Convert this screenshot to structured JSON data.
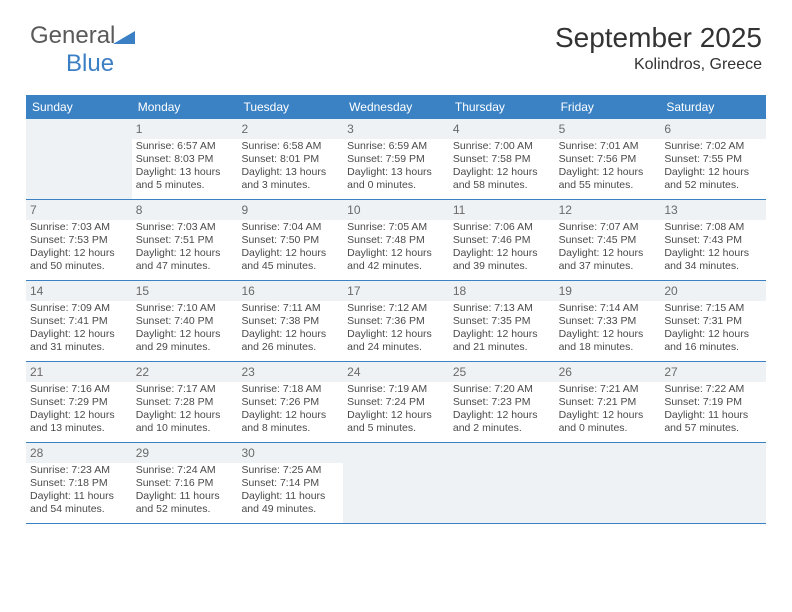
{
  "brand": {
    "part1": "General",
    "part2": "Blue"
  },
  "title": "September 2025",
  "location": "Kolindros, Greece",
  "colors": {
    "header_bg": "#3b82c4",
    "header_text": "#ffffff",
    "shaded_bg": "#eef2f5",
    "border": "#3b82c4",
    "text": "#4a4a4a"
  },
  "weekdays": [
    "Sunday",
    "Monday",
    "Tuesday",
    "Wednesday",
    "Thursday",
    "Friday",
    "Saturday"
  ],
  "weeks": [
    [
      {
        "shaded": true
      },
      {
        "day": "1",
        "sunrise": "Sunrise: 6:57 AM",
        "sunset": "Sunset: 8:03 PM",
        "daylight": "Daylight: 13 hours and 5 minutes."
      },
      {
        "day": "2",
        "sunrise": "Sunrise: 6:58 AM",
        "sunset": "Sunset: 8:01 PM",
        "daylight": "Daylight: 13 hours and 3 minutes."
      },
      {
        "day": "3",
        "sunrise": "Sunrise: 6:59 AM",
        "sunset": "Sunset: 7:59 PM",
        "daylight": "Daylight: 13 hours and 0 minutes."
      },
      {
        "day": "4",
        "sunrise": "Sunrise: 7:00 AM",
        "sunset": "Sunset: 7:58 PM",
        "daylight": "Daylight: 12 hours and 58 minutes."
      },
      {
        "day": "5",
        "sunrise": "Sunrise: 7:01 AM",
        "sunset": "Sunset: 7:56 PM",
        "daylight": "Daylight: 12 hours and 55 minutes."
      },
      {
        "day": "6",
        "sunrise": "Sunrise: 7:02 AM",
        "sunset": "Sunset: 7:55 PM",
        "daylight": "Daylight: 12 hours and 52 minutes."
      }
    ],
    [
      {
        "day": "7",
        "sunrise": "Sunrise: 7:03 AM",
        "sunset": "Sunset: 7:53 PM",
        "daylight": "Daylight: 12 hours and 50 minutes."
      },
      {
        "day": "8",
        "sunrise": "Sunrise: 7:03 AM",
        "sunset": "Sunset: 7:51 PM",
        "daylight": "Daylight: 12 hours and 47 minutes."
      },
      {
        "day": "9",
        "sunrise": "Sunrise: 7:04 AM",
        "sunset": "Sunset: 7:50 PM",
        "daylight": "Daylight: 12 hours and 45 minutes."
      },
      {
        "day": "10",
        "sunrise": "Sunrise: 7:05 AM",
        "sunset": "Sunset: 7:48 PM",
        "daylight": "Daylight: 12 hours and 42 minutes."
      },
      {
        "day": "11",
        "sunrise": "Sunrise: 7:06 AM",
        "sunset": "Sunset: 7:46 PM",
        "daylight": "Daylight: 12 hours and 39 minutes."
      },
      {
        "day": "12",
        "sunrise": "Sunrise: 7:07 AM",
        "sunset": "Sunset: 7:45 PM",
        "daylight": "Daylight: 12 hours and 37 minutes."
      },
      {
        "day": "13",
        "sunrise": "Sunrise: 7:08 AM",
        "sunset": "Sunset: 7:43 PM",
        "daylight": "Daylight: 12 hours and 34 minutes."
      }
    ],
    [
      {
        "day": "14",
        "sunrise": "Sunrise: 7:09 AM",
        "sunset": "Sunset: 7:41 PM",
        "daylight": "Daylight: 12 hours and 31 minutes."
      },
      {
        "day": "15",
        "sunrise": "Sunrise: 7:10 AM",
        "sunset": "Sunset: 7:40 PM",
        "daylight": "Daylight: 12 hours and 29 minutes."
      },
      {
        "day": "16",
        "sunrise": "Sunrise: 7:11 AM",
        "sunset": "Sunset: 7:38 PM",
        "daylight": "Daylight: 12 hours and 26 minutes."
      },
      {
        "day": "17",
        "sunrise": "Sunrise: 7:12 AM",
        "sunset": "Sunset: 7:36 PM",
        "daylight": "Daylight: 12 hours and 24 minutes."
      },
      {
        "day": "18",
        "sunrise": "Sunrise: 7:13 AM",
        "sunset": "Sunset: 7:35 PM",
        "daylight": "Daylight: 12 hours and 21 minutes."
      },
      {
        "day": "19",
        "sunrise": "Sunrise: 7:14 AM",
        "sunset": "Sunset: 7:33 PM",
        "daylight": "Daylight: 12 hours and 18 minutes."
      },
      {
        "day": "20",
        "sunrise": "Sunrise: 7:15 AM",
        "sunset": "Sunset: 7:31 PM",
        "daylight": "Daylight: 12 hours and 16 minutes."
      }
    ],
    [
      {
        "day": "21",
        "sunrise": "Sunrise: 7:16 AM",
        "sunset": "Sunset: 7:29 PM",
        "daylight": "Daylight: 12 hours and 13 minutes."
      },
      {
        "day": "22",
        "sunrise": "Sunrise: 7:17 AM",
        "sunset": "Sunset: 7:28 PM",
        "daylight": "Daylight: 12 hours and 10 minutes."
      },
      {
        "day": "23",
        "sunrise": "Sunrise: 7:18 AM",
        "sunset": "Sunset: 7:26 PM",
        "daylight": "Daylight: 12 hours and 8 minutes."
      },
      {
        "day": "24",
        "sunrise": "Sunrise: 7:19 AM",
        "sunset": "Sunset: 7:24 PM",
        "daylight": "Daylight: 12 hours and 5 minutes."
      },
      {
        "day": "25",
        "sunrise": "Sunrise: 7:20 AM",
        "sunset": "Sunset: 7:23 PM",
        "daylight": "Daylight: 12 hours and 2 minutes."
      },
      {
        "day": "26",
        "sunrise": "Sunrise: 7:21 AM",
        "sunset": "Sunset: 7:21 PM",
        "daylight": "Daylight: 12 hours and 0 minutes."
      },
      {
        "day": "27",
        "sunrise": "Sunrise: 7:22 AM",
        "sunset": "Sunset: 7:19 PM",
        "daylight": "Daylight: 11 hours and 57 minutes."
      }
    ],
    [
      {
        "day": "28",
        "sunrise": "Sunrise: 7:23 AM",
        "sunset": "Sunset: 7:18 PM",
        "daylight": "Daylight: 11 hours and 54 minutes."
      },
      {
        "day": "29",
        "sunrise": "Sunrise: 7:24 AM",
        "sunset": "Sunset: 7:16 PM",
        "daylight": "Daylight: 11 hours and 52 minutes."
      },
      {
        "day": "30",
        "sunrise": "Sunrise: 7:25 AM",
        "sunset": "Sunset: 7:14 PM",
        "daylight": "Daylight: 11 hours and 49 minutes."
      },
      {
        "shaded": true
      },
      {
        "shaded": true
      },
      {
        "shaded": true
      },
      {
        "shaded": true
      }
    ]
  ]
}
